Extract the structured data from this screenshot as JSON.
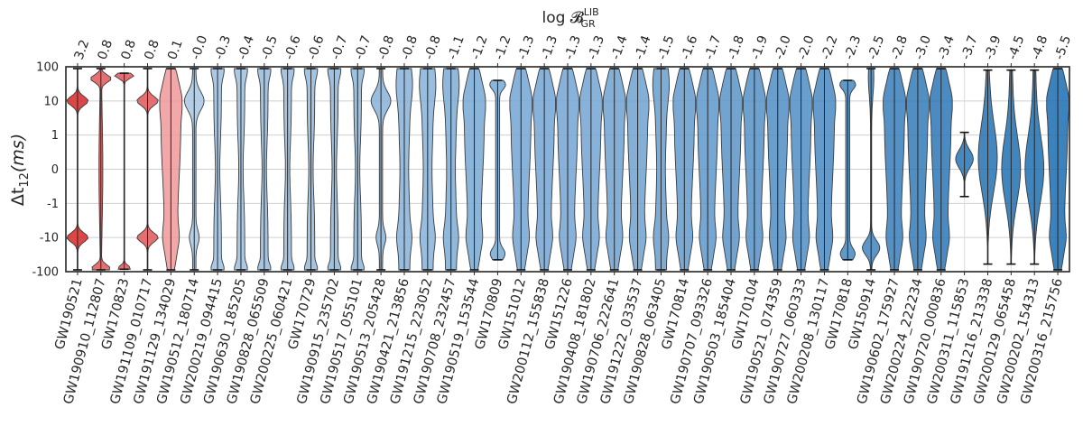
{
  "chart_data": {
    "type": "violin",
    "top_axis_label": "log 𝓑",
    "top_axis_label_sup": "LIB",
    "top_axis_label_sub": "GR",
    "ylabel_main": "Δt",
    "ylabel_sub": "12",
    "ylabel_unit": "(ms)",
    "y_scale": "symlog",
    "ylim": [
      -100,
      100
    ],
    "y_ticks": [
      -100,
      -10,
      -1,
      0,
      1,
      10,
      100
    ],
    "y_tick_labels": [
      "-100",
      "-10",
      "-1",
      "0",
      "1",
      "10",
      "100"
    ],
    "grid": true,
    "events": [
      {
        "name": "GW190521",
        "log_bf": "3.2",
        "color": "#d62728",
        "shape": "bimodal",
        "center": null
      },
      {
        "name": "GW190910_112807",
        "log_bf": "0.8",
        "color": "#e15759",
        "shape": "edges",
        "center": null
      },
      {
        "name": "GW170823",
        "log_bf": "0.8",
        "color": "#e15759",
        "shape": "edge-pos",
        "center": null
      },
      {
        "name": "GW191109_010717",
        "log_bf": "0.8",
        "color": "#e15759",
        "shape": "bimodal",
        "center": null
      },
      {
        "name": "GW191129_134029",
        "log_bf": "0.1",
        "color": "#f0989a",
        "shape": "wide",
        "center": null
      },
      {
        "name": "GW190512_180714",
        "log_bf": "-0.0",
        "color": "#a9c7e2",
        "shape": "pos-heavy",
        "center": null
      },
      {
        "name": "GW200219_094415",
        "log_bf": "-0.3",
        "color": "#9cc0e0",
        "shape": "slim",
        "center": null
      },
      {
        "name": "GW190630_185205",
        "log_bf": "-0.4",
        "color": "#9cc0e0",
        "shape": "slim",
        "center": null
      },
      {
        "name": "GW190828_065509",
        "log_bf": "-0.5",
        "color": "#94badd",
        "shape": "slim",
        "center": null
      },
      {
        "name": "GW200225_060421",
        "log_bf": "-0.6",
        "color": "#94badd",
        "shape": "slim",
        "center": null
      },
      {
        "name": "GW170729",
        "log_bf": "-0.6",
        "color": "#94badd",
        "shape": "slim",
        "center": null
      },
      {
        "name": "GW190915_235702",
        "log_bf": "-0.7",
        "color": "#8cb6db",
        "shape": "slim",
        "center": null
      },
      {
        "name": "GW190517_055101",
        "log_bf": "-0.7",
        "color": "#8cb6db",
        "shape": "slim",
        "center": null
      },
      {
        "name": "GW190513_205428",
        "log_bf": "-0.8",
        "color": "#86b1d8",
        "shape": "pos-heavy",
        "center": null
      },
      {
        "name": "GW190421_213856",
        "log_bf": "-0.8",
        "color": "#86b1d8",
        "shape": "medium",
        "center": null
      },
      {
        "name": "GW191215_223052",
        "log_bf": "-0.8",
        "color": "#86b1d8",
        "shape": "medium",
        "center": null
      },
      {
        "name": "GW190708_232457",
        "log_bf": "-1.1",
        "color": "#7dabd5",
        "shape": "medium",
        "center": null
      },
      {
        "name": "GW190519_153544",
        "log_bf": "-1.2",
        "color": "#78a8d3",
        "shape": "wide",
        "center": null
      },
      {
        "name": "GW170809",
        "log_bf": "-1.2",
        "color": "#78a8d3",
        "shape": "hourglass",
        "center": null
      },
      {
        "name": "GW151012",
        "log_bf": "-1.3",
        "color": "#73a5d2",
        "shape": "wide",
        "center": null
      },
      {
        "name": "GW200112_155838",
        "log_bf": "-1.3",
        "color": "#73a5d2",
        "shape": "wide",
        "center": null
      },
      {
        "name": "GW151226",
        "log_bf": "-1.3",
        "color": "#73a5d2",
        "shape": "wide",
        "center": null
      },
      {
        "name": "GW190408_181802",
        "log_bf": "-1.3",
        "color": "#73a5d2",
        "shape": "wide",
        "center": null
      },
      {
        "name": "GW190706_222641",
        "log_bf": "-1.4",
        "color": "#6ea1cf",
        "shape": "wide",
        "center": null
      },
      {
        "name": "GW191222_033537",
        "log_bf": "-1.4",
        "color": "#6ea1cf",
        "shape": "wide",
        "center": null
      },
      {
        "name": "GW190828_063405",
        "log_bf": "-1.5",
        "color": "#689ecd",
        "shape": "medium",
        "center": null
      },
      {
        "name": "GW170814",
        "log_bf": "-1.6",
        "color": "#639bcc",
        "shape": "wide",
        "center": null
      },
      {
        "name": "GW190707_093326",
        "log_bf": "-1.7",
        "color": "#5e97ca",
        "shape": "wide",
        "center": null
      },
      {
        "name": "GW190503_185404",
        "log_bf": "-1.8",
        "color": "#5a94c8",
        "shape": "wide",
        "center": null
      },
      {
        "name": "GW170104",
        "log_bf": "-1.9",
        "color": "#5591c6",
        "shape": "wide",
        "center": null
      },
      {
        "name": "GW190521_074359",
        "log_bf": "-2.0",
        "color": "#508ec4",
        "shape": "wide",
        "center": null
      },
      {
        "name": "GW190727_060333",
        "log_bf": "-2.0",
        "color": "#508ec4",
        "shape": "wide",
        "center": null
      },
      {
        "name": "GW200208_130117",
        "log_bf": "-2.2",
        "color": "#4a8ac2",
        "shape": "wide",
        "center": null
      },
      {
        "name": "GW170818",
        "log_bf": "-2.3",
        "color": "#4587c0",
        "shape": "hourglass",
        "center": null
      },
      {
        "name": "GW150914",
        "log_bf": "-2.5",
        "color": "#3f83be",
        "shape": "neg-tail",
        "center": null
      },
      {
        "name": "GW190602_175927",
        "log_bf": "-2.8",
        "color": "#377ebb",
        "shape": "wide",
        "center": null
      },
      {
        "name": "GW200224_222234",
        "log_bf": "-3.0",
        "color": "#327bb9",
        "shape": "wide",
        "center": null
      },
      {
        "name": "GW190720_000836",
        "log_bf": "-3.4",
        "color": "#2b77b7",
        "shape": "wide",
        "center": null
      },
      {
        "name": "GW200311_115853",
        "log_bf": "-3.7",
        "color": "#2674b5",
        "shape": "central",
        "center": 0.3
      },
      {
        "name": "GW191216_213338",
        "log_bf": "-3.9",
        "color": "#2372b4",
        "shape": "broad-center",
        "center": 0.3
      },
      {
        "name": "GW200129_065458",
        "log_bf": "-4.5",
        "color": "#1f70b3",
        "shape": "broad-center",
        "center": 0.0
      },
      {
        "name": "GW200202_154313",
        "log_bf": "-4.8",
        "color": "#1c6eb2",
        "shape": "broad-center",
        "center": 0.0
      },
      {
        "name": "GW200316_215756",
        "log_bf": "-5.5",
        "color": "#1a6db1",
        "shape": "wide",
        "center": null
      }
    ]
  }
}
